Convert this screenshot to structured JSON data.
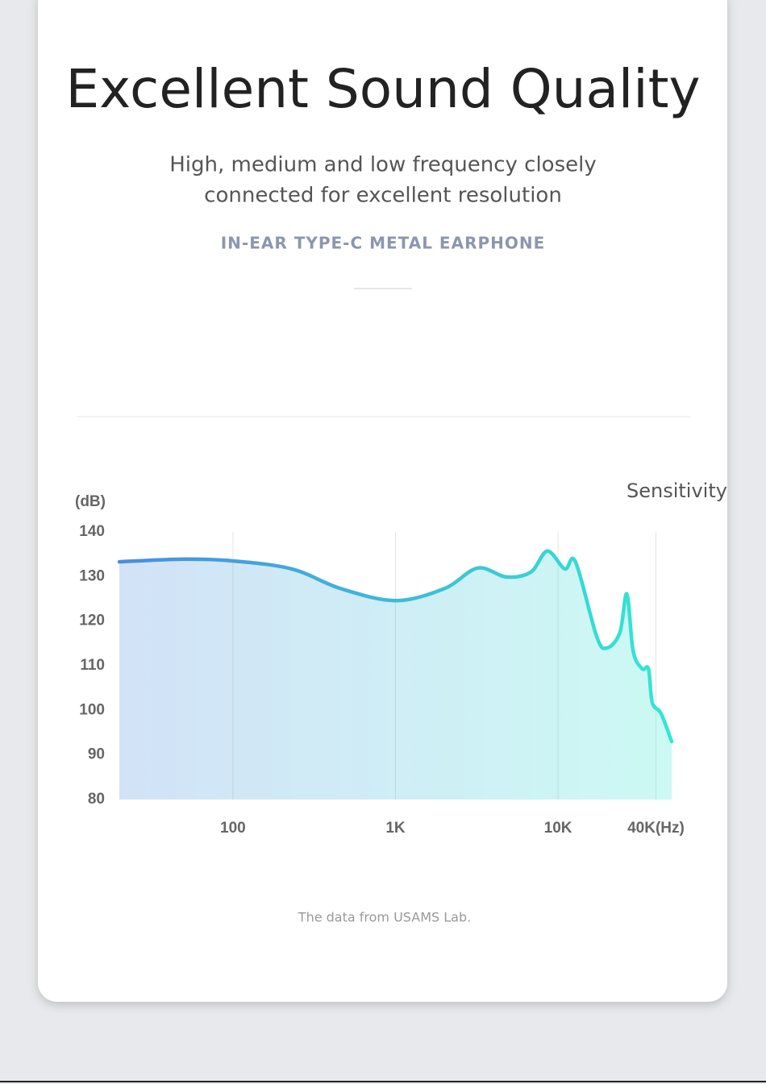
{
  "header": {
    "title": "Excellent Sound Quality",
    "subtitle": [
      "High, medium and low frequency closely",
      "connected for excellent resolution"
    ],
    "tagline": "IN-EAR TYPE-C METAL EARPHONE"
  },
  "footnote": "The data from USAMS Lab.",
  "chart_data": {
    "type": "line",
    "ylabel": "(dB)",
    "xscale": "log",
    "grid": true,
    "legend": "top-right",
    "x": [
      20,
      50,
      100,
      230,
      460,
      1000,
      2000,
      3200,
      4800,
      6800,
      8600,
      11000,
      12800,
      17300,
      20000,
      24000,
      26500,
      29000,
      33000,
      36000,
      38000,
      43000,
      50000
    ],
    "series": [
      {
        "name": "Sensitivity",
        "color": "#33e4d2",
        "gradient": [
          "#4a8ce0",
          "#33e8d2"
        ],
        "values": [
          133.3,
          133.9,
          133.5,
          131.7,
          127.3,
          124.6,
          127.3,
          131.9,
          129.9,
          131,
          135.7,
          131.7,
          133.3,
          116.5,
          114,
          117.4,
          126.1,
          113.2,
          109.3,
          109.3,
          101.7,
          99.3,
          93
        ]
      }
    ],
    "xlim": [
      20,
      50000
    ],
    "xticks": [
      100,
      {
        "value": 1000,
        "label": "1K"
      },
      {
        "value": 10000,
        "label": "10K"
      },
      {
        "value": 40000,
        "label": "40K(Hz)"
      }
    ],
    "ylim": [
      80,
      140
    ],
    "yticks": [
      80,
      90,
      100,
      110,
      120,
      130,
      140
    ]
  }
}
